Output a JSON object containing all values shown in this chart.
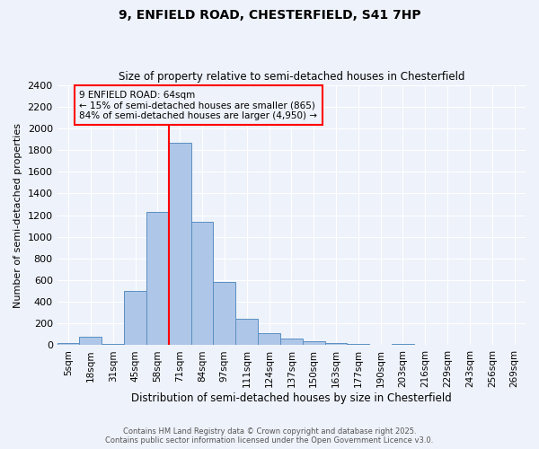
{
  "title": "9, ENFIELD ROAD, CHESTERFIELD, S41 7HP",
  "subtitle": "Size of property relative to semi-detached houses in Chesterfield",
  "xlabel": "Distribution of semi-detached houses by size in Chesterfield",
  "ylabel": "Number of semi-detached properties",
  "footer_line1": "Contains HM Land Registry data © Crown copyright and database right 2025.",
  "footer_line2": "Contains public sector information licensed under the Open Government Licence v3.0.",
  "bar_labels": [
    "5sqm",
    "18sqm",
    "31sqm",
    "45sqm",
    "58sqm",
    "71sqm",
    "84sqm",
    "97sqm",
    "111sqm",
    "124sqm",
    "137sqm",
    "150sqm",
    "163sqm",
    "177sqm",
    "190sqm",
    "203sqm",
    "216sqm",
    "229sqm",
    "243sqm",
    "256sqm",
    "269sqm"
  ],
  "bar_values": [
    20,
    80,
    10,
    500,
    1230,
    1870,
    1140,
    580,
    240,
    110,
    60,
    35,
    20,
    10,
    0,
    15,
    0,
    0,
    0,
    0,
    0
  ],
  "bar_color": "#aec6e8",
  "bar_edge_color": "#5a8fc2",
  "ylim": [
    0,
    2400
  ],
  "yticks": [
    0,
    200,
    400,
    600,
    800,
    1000,
    1200,
    1400,
    1600,
    1800,
    2000,
    2200,
    2400
  ],
  "vline_x": 4.5,
  "annotation_line1": "9 ENFIELD ROAD: 64sqm",
  "annotation_line2": "← 15% of semi-detached houses are smaller (865)",
  "annotation_line3": "84% of semi-detached houses are larger (4,950) →",
  "bg_color": "#eef2fa",
  "grid_color": "#ffffff"
}
